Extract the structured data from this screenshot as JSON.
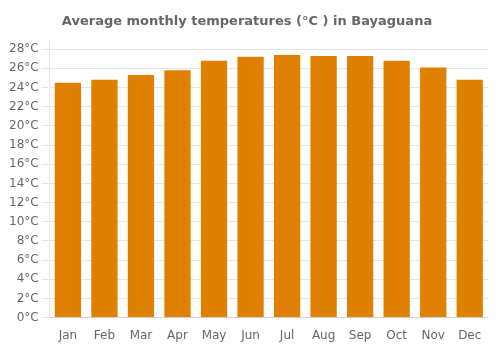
{
  "chart_data": {
    "type": "bar",
    "title": "Average monthly temperatures (°C ) in Bayaguana",
    "categories": [
      "Jan",
      "Feb",
      "Mar",
      "Apr",
      "May",
      "Jun",
      "Jul",
      "Aug",
      "Sep",
      "Oct",
      "Nov",
      "Dec"
    ],
    "values": [
      24.5,
      24.8,
      25.3,
      25.8,
      26.8,
      27.2,
      27.4,
      27.3,
      27.3,
      26.8,
      26.1,
      24.8
    ],
    "color": "#E08000",
    "ylim": [
      0,
      29
    ],
    "yticks": [
      {
        "value": 0,
        "label": "0°C"
      },
      {
        "value": 2,
        "label": "2°C"
      },
      {
        "value": 4,
        "label": "4°C"
      },
      {
        "value": 6,
        "label": "6°C"
      },
      {
        "value": 8,
        "label": "8°C"
      },
      {
        "value": 10,
        "label": "10°C"
      },
      {
        "value": 12,
        "label": "12°C"
      },
      {
        "value": 14,
        "label": "14°C"
      },
      {
        "value": 16,
        "label": "16°C"
      },
      {
        "value": 18,
        "label": "18°C"
      },
      {
        "value": 20,
        "label": "20°C"
      },
      {
        "value": 22,
        "label": "22°C"
      },
      {
        "value": 24,
        "label": "24°C"
      },
      {
        "value": 26,
        "label": "26°C"
      },
      {
        "value": 28,
        "label": "28°C"
      }
    ],
    "grid": "y"
  }
}
